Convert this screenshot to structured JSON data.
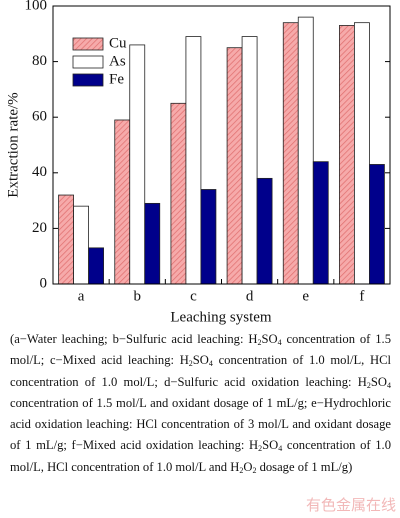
{
  "chart_data": {
    "type": "bar",
    "categories": [
      "a",
      "b",
      "c",
      "d",
      "e",
      "f"
    ],
    "series": [
      {
        "name": "Cu",
        "color": "#f08c8c",
        "values": [
          32,
          59,
          65,
          85,
          94,
          93
        ]
      },
      {
        "name": "As",
        "color": "#ffffff",
        "values": [
          28,
          86,
          89,
          89,
          96,
          94
        ]
      },
      {
        "name": "Fe",
        "color": "#00008b",
        "values": [
          13,
          29,
          34,
          38,
          44,
          43
        ]
      }
    ],
    "ylabel": "Extraction rate/%",
    "xlabel": "Leaching system",
    "ylim": [
      0,
      100
    ],
    "yticks": [
      0,
      20,
      40,
      60,
      80,
      100
    ],
    "legend": "upper left"
  },
  "caption": [
    "(a−Water leaching; b−Sulfuric acid leaching: H",
    "2",
    "SO",
    "4",
    " concentration of 1.5 mol/L; c−Mixed acid leaching: H",
    "2",
    "SO",
    "4",
    " concentration of 1.0 mol/L, HCl concentration of 1.0 mol/L; d−Sulfuric acid oxidation leaching: H",
    "2",
    "SO",
    "4",
    " concentration of 1.5 mol/L and oxidant dosage of 1 mL/g; e−Hydrochloric acid oxidation leaching: HCl concentration of 3 mol/L and oxidant dosage of 1 mL/g; f−Mixed acid oxidation leaching: H",
    "2",
    "SO",
    "4",
    " concentration of 1.0 mol/L, HCl concentration of 1.0 mol/L and H",
    "2",
    "O",
    "2",
    " dosage of 1 mL/g)"
  ],
  "watermark": "有色金属在线"
}
